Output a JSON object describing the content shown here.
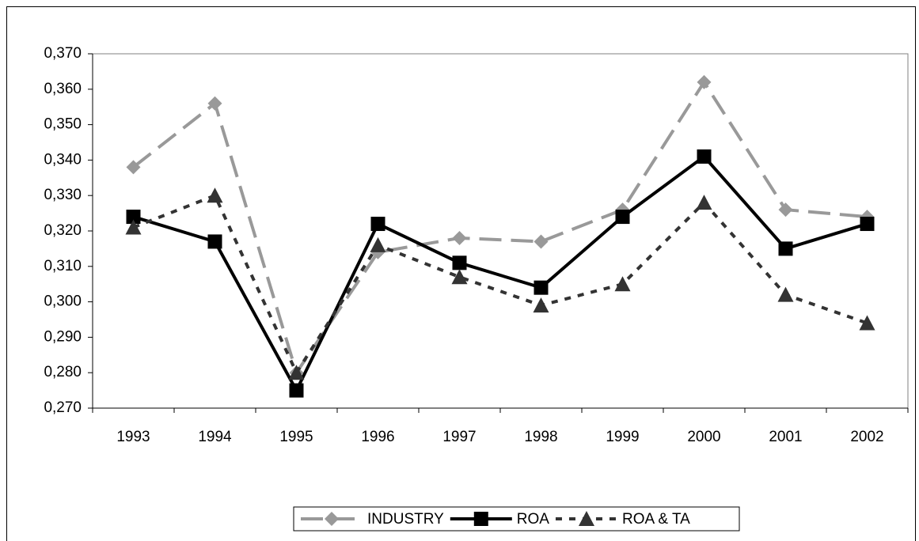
{
  "chart_data": {
    "type": "line",
    "categories": [
      "1993",
      "1994",
      "1995",
      "1996",
      "1997",
      "1998",
      "1999",
      "2000",
      "2001",
      "2002"
    ],
    "series": [
      {
        "name": "INDUSTRY",
        "color": "#999999",
        "dash": "28 12",
        "marker": "diamond",
        "values": [
          0.338,
          0.356,
          0.28,
          0.314,
          0.318,
          0.317,
          0.326,
          0.362,
          0.326,
          0.324
        ]
      },
      {
        "name": "ROA",
        "color": "#000000",
        "dash": "none",
        "marker": "square",
        "values": [
          0.324,
          0.317,
          0.275,
          0.322,
          0.311,
          0.304,
          0.324,
          0.341,
          0.315,
          0.322
        ]
      },
      {
        "name": "ROA & TA",
        "color": "#333333",
        "dash": "8 9",
        "marker": "triangle",
        "values": [
          0.321,
          0.33,
          0.28,
          0.316,
          0.307,
          0.299,
          0.305,
          0.328,
          0.302,
          0.294
        ]
      }
    ],
    "ylim": [
      0.27,
      0.37
    ],
    "yticks": [
      {
        "value": 0.27,
        "label": "0,270"
      },
      {
        "value": 0.28,
        "label": "0,280"
      },
      {
        "value": 0.29,
        "label": "0,290"
      },
      {
        "value": 0.3,
        "label": "0,300"
      },
      {
        "value": 0.31,
        "label": "0,310"
      },
      {
        "value": 0.32,
        "label": "0,320"
      },
      {
        "value": 0.33,
        "label": "0,330"
      },
      {
        "value": 0.34,
        "label": "0,340"
      },
      {
        "value": 0.35,
        "label": "0,350"
      },
      {
        "value": 0.36,
        "label": "0,360"
      },
      {
        "value": 0.37,
        "label": "0,370"
      }
    ],
    "grid": false,
    "legend": "bottom"
  }
}
